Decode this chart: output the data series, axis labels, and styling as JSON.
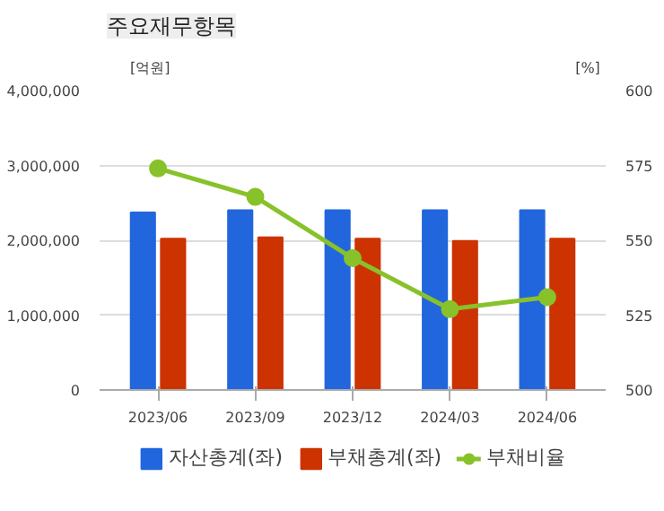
{
  "chart_data": {
    "type": "bar",
    "title": "주요재무항목",
    "ylabel": "[억원]",
    "y2label": "[%]",
    "categories": [
      "2023/06",
      "2023/09",
      "2023/12",
      "2024/03",
      "2024/06"
    ],
    "series": [
      {
        "name": "자산총계(좌)",
        "color": "#2266dd",
        "values": [
          2370000,
          2400000,
          2400000,
          2400000,
          2400000
        ]
      },
      {
        "name": "부채총계(좌)",
        "color": "#cc3300",
        "values": [
          2020000,
          2040000,
          2020000,
          1990000,
          2020000
        ]
      },
      {
        "name": "부채비율",
        "type": "line",
        "axis": "y2",
        "color": "#88c22a",
        "values": [
          574,
          564.5,
          544,
          527,
          531
        ]
      }
    ],
    "ylim": [
      0,
      4000000
    ],
    "yticks": [
      {
        "value": 0,
        "label": "0"
      },
      {
        "value": 1000000,
        "label": "1,000,000"
      },
      {
        "value": 2000000,
        "label": "2,000,000"
      },
      {
        "value": 3000000,
        "label": "3,000,000"
      },
      {
        "value": 4000000,
        "label": "4,000,000"
      }
    ],
    "y2lim": [
      500,
      600
    ],
    "y2ticks": [
      500,
      525,
      550,
      575,
      600
    ],
    "grid": "y",
    "legend": "bottom",
    "marker": "circle"
  }
}
